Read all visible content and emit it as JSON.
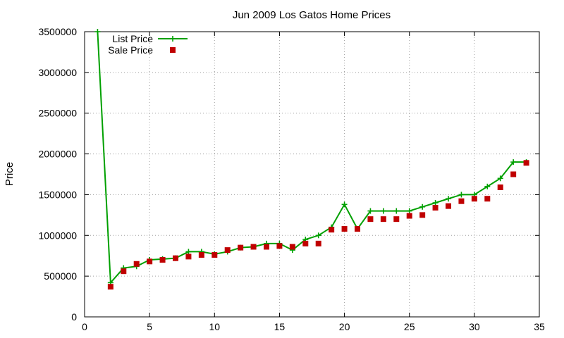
{
  "chart_data": {
    "type": "line",
    "title": "Jun 2009 Los Gatos Home Prices",
    "xlabel": "",
    "ylabel": "Price",
    "xlim": [
      0,
      35
    ],
    "ylim": [
      0,
      3500000
    ],
    "xticks": [
      0,
      5,
      10,
      15,
      20,
      25,
      30,
      35
    ],
    "yticks": [
      0,
      500000,
      1000000,
      1500000,
      2000000,
      2500000,
      3000000,
      3500000
    ],
    "grid": true,
    "legend_position": "top-left",
    "series": [
      {
        "name": "List Price",
        "style": "line-plus",
        "color": "#00a000",
        "x": [
          1,
          2,
          3,
          4,
          5,
          6,
          7,
          8,
          9,
          10,
          11,
          12,
          13,
          14,
          15,
          16,
          17,
          18,
          19,
          20,
          21,
          22,
          23,
          24,
          25,
          26,
          27,
          28,
          29,
          30,
          31,
          32,
          33,
          34
        ],
        "y": [
          3500000,
          420000,
          600000,
          620000,
          700000,
          710000,
          720000,
          800000,
          800000,
          770000,
          800000,
          850000,
          860000,
          900000,
          900000,
          820000,
          950000,
          1000000,
          1100000,
          1380000,
          1080000,
          1300000,
          1300000,
          1300000,
          1300000,
          1350000,
          1400000,
          1450000,
          1500000,
          1500000,
          1600000,
          1700000,
          1900000,
          1900000
        ]
      },
      {
        "name": "Sale Price",
        "style": "square-points",
        "color": "#c00000",
        "x": [
          2,
          3,
          4,
          5,
          6,
          7,
          8,
          9,
          10,
          11,
          12,
          13,
          14,
          15,
          16,
          17,
          18,
          19,
          20,
          21,
          22,
          23,
          24,
          25,
          26,
          27,
          28,
          29,
          30,
          31,
          32,
          33,
          34
        ],
        "y": [
          370000,
          560000,
          650000,
          680000,
          700000,
          720000,
          740000,
          760000,
          760000,
          820000,
          850000,
          860000,
          860000,
          870000,
          860000,
          900000,
          900000,
          1070000,
          1080000,
          1080000,
          1200000,
          1200000,
          1200000,
          1240000,
          1250000,
          1340000,
          1360000,
          1420000,
          1450000,
          1450000,
          1590000,
          1750000,
          1890000
        ]
      }
    ]
  }
}
